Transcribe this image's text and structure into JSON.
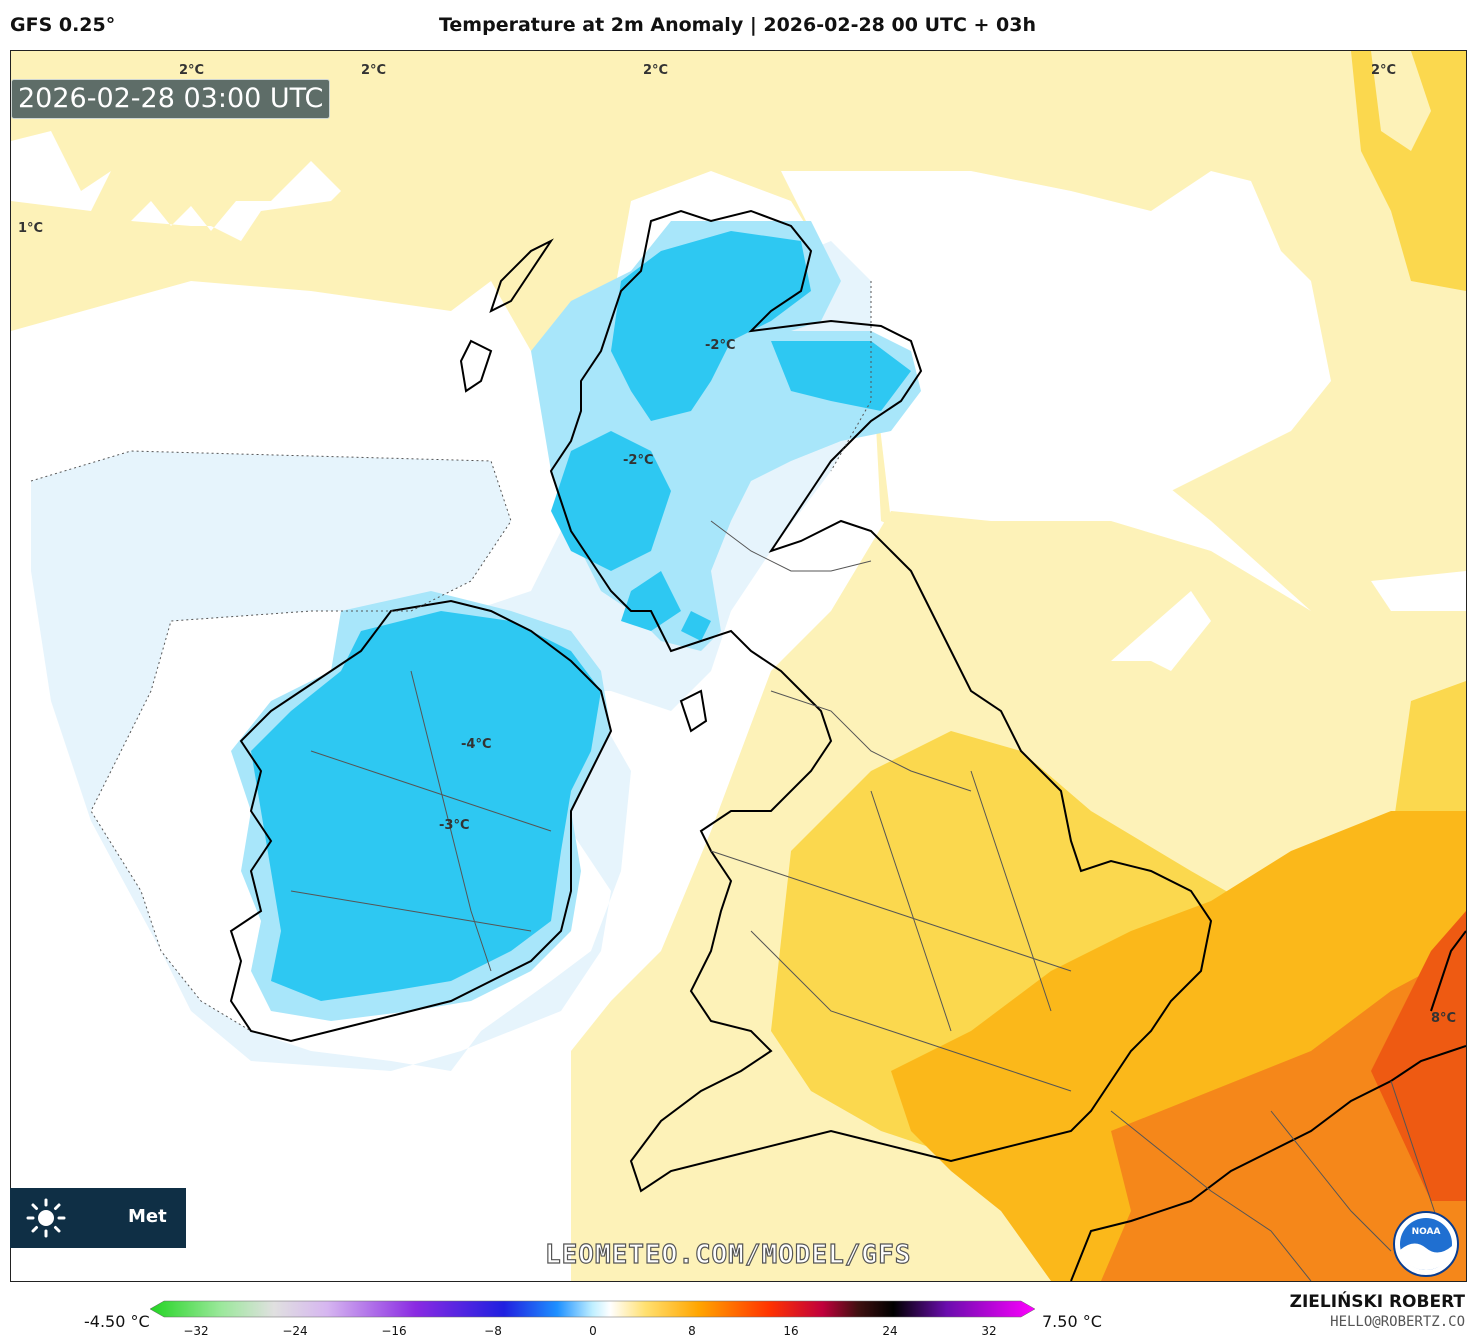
{
  "header": {
    "model": "GFS 0.25°",
    "title": "Temperature at 2m Anomaly | 2026-02-28 00 UTC + 03h"
  },
  "map": {
    "valid_time": "2026-02-28 03:00 UTC",
    "contour_labels": [
      {
        "text": "2°C"
      },
      {
        "text": "2°C"
      },
      {
        "text": "2°C"
      },
      {
        "text": "2°C"
      },
      {
        "text": "1°C"
      },
      {
        "text": "-2°C"
      },
      {
        "text": "-2°C"
      },
      {
        "text": "-4°C"
      },
      {
        "text": "-3°C"
      },
      {
        "text": "8°C"
      }
    ],
    "logo_text": "Met",
    "watermark": "LEOMETEO.COM/MODEL/GFS",
    "noaa_logo_text": "NOAA",
    "colors": {
      "cold_light": "#e6f4fc",
      "cold_mid": "#a8e6fa",
      "cold_strong": "#2ec8f2",
      "warm_light": "#fdf2b8",
      "warm_mid": "#fbd84e",
      "warm_strong": "#fbb81a",
      "hot": "#f5871a",
      "hotter": "#ee5a12",
      "land_outline": "#000000"
    }
  },
  "colorbar": {
    "min_label": "-4.50 °C",
    "max_label": "7.50 °C",
    "ticks": [
      "−32",
      "−24",
      "−16",
      "−8",
      "0",
      "8",
      "16",
      "24",
      "32"
    ]
  },
  "credits": {
    "author": "ZIELIŃSKI ROBERT",
    "email": "HELLO@ROBERTZ.CO"
  }
}
